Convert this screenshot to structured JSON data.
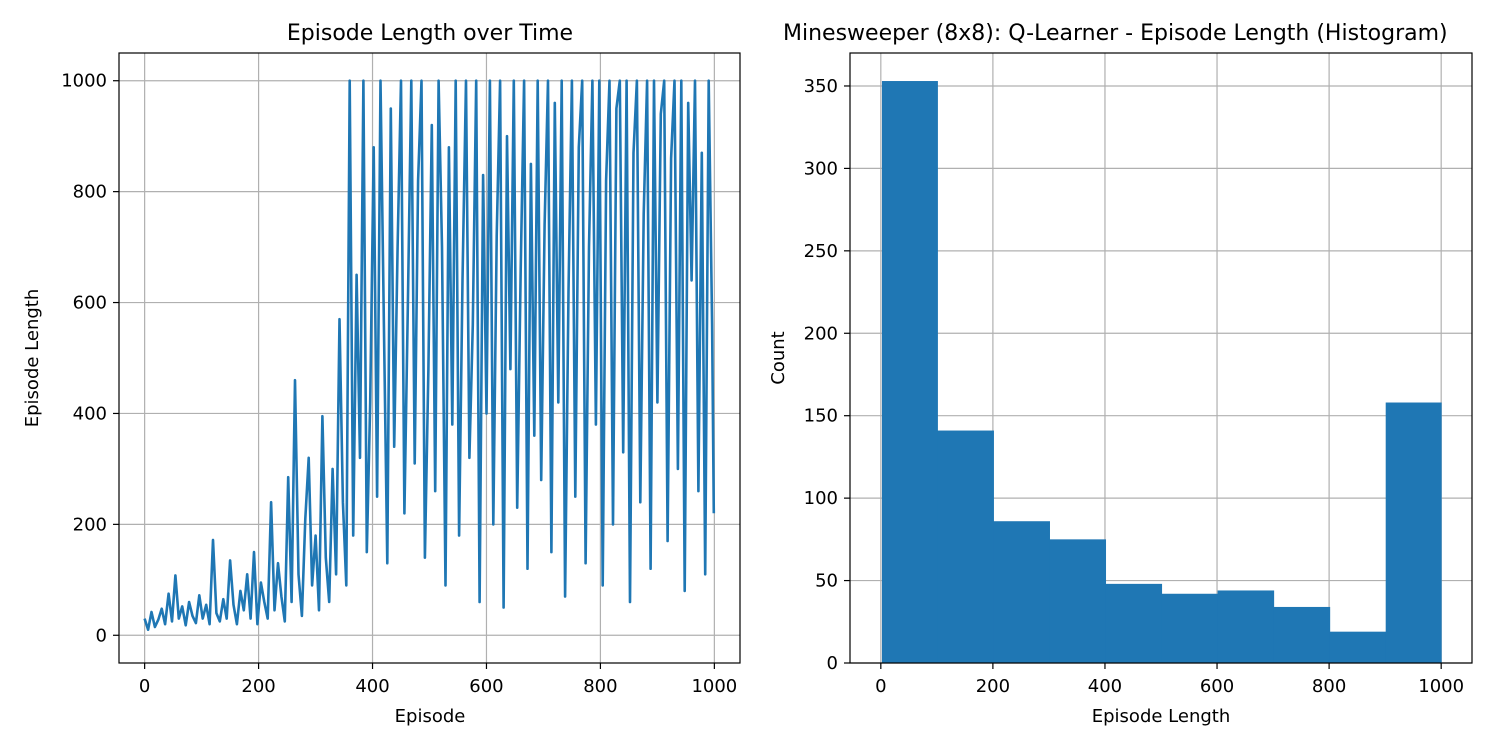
{
  "chart_data": [
    {
      "type": "line",
      "title": "Episode Length over Time",
      "xlabel": "Episode",
      "ylabel": "Episode Length",
      "xlim": [
        -45,
        1045
      ],
      "ylim": [
        -50,
        1050
      ],
      "xticks": [
        "0",
        "200",
        "400",
        "600",
        "800",
        "1000"
      ],
      "yticks": [
        "0",
        "200",
        "400",
        "600",
        "800",
        "1000"
      ],
      "grid": true,
      "color": "#1f77b4",
      "series": [
        {
          "x": [
            0,
            6,
            12,
            18,
            24,
            30,
            36,
            42,
            48,
            54,
            60,
            66,
            72,
            78,
            84,
            90,
            96,
            102,
            108,
            114,
            120,
            126,
            132,
            138,
            144,
            150,
            156,
            162,
            168,
            174,
            180,
            186,
            192,
            198,
            204,
            210,
            216,
            222,
            228,
            234,
            240,
            246,
            252,
            258,
            264,
            270,
            276,
            282,
            288,
            294,
            300,
            306,
            312,
            318,
            324,
            330,
            336,
            342,
            348,
            354,
            360,
            366,
            372,
            378,
            384,
            390,
            396,
            402,
            408,
            414,
            420,
            426,
            432,
            438,
            444,
            450,
            456,
            462,
            468,
            474,
            480,
            486,
            492,
            498,
            504,
            510,
            516,
            522,
            528,
            534,
            540,
            546,
            552,
            558,
            564,
            570,
            576,
            582,
            588,
            594,
            600,
            606,
            612,
            618,
            624,
            630,
            636,
            642,
            648,
            654,
            660,
            666,
            672,
            678,
            684,
            690,
            696,
            702,
            708,
            714,
            720,
            726,
            732,
            738,
            744,
            750,
            756,
            762,
            768,
            774,
            780,
            786,
            792,
            798,
            804,
            810,
            816,
            822,
            828,
            834,
            840,
            846,
            852,
            858,
            864,
            870,
            876,
            882,
            888,
            894,
            900,
            906,
            912,
            918,
            924,
            930,
            936,
            942,
            948,
            954,
            960,
            966,
            972,
            978,
            984,
            990,
            996,
            999
          ],
          "y": [
            30,
            10,
            42,
            15,
            28,
            48,
            20,
            75,
            25,
            108,
            30,
            52,
            18,
            60,
            35,
            22,
            72,
            30,
            55,
            20,
            172,
            40,
            25,
            65,
            30,
            135,
            55,
            20,
            80,
            45,
            110,
            30,
            150,
            20,
            95,
            60,
            30,
            240,
            45,
            130,
            70,
            25,
            285,
            60,
            460,
            110,
            35,
            210,
            320,
            90,
            180,
            45,
            395,
            140,
            60,
            300,
            110,
            570,
            240,
            90,
            1000,
            180,
            650,
            320,
            1000,
            150,
            420,
            880,
            250,
            1000,
            560,
            130,
            950,
            340,
            700,
            1000,
            220,
            600,
            1000,
            310,
            820,
            1000,
            140,
            480,
            920,
            260,
            1000,
            700,
            90,
            880,
            380,
            1000,
            180,
            640,
            1000,
            320,
            560,
            1000,
            60,
            830,
            400,
            1000,
            200,
            720,
            1000,
            50,
            900,
            480,
            1000,
            230,
            660,
            1000,
            120,
            850,
            360,
            1000,
            280,
            740,
            1000,
            150,
            960,
            420,
            1000,
            70,
            620,
            1000,
            250,
            880,
            1000,
            130,
            700,
            1000,
            380,
            1000,
            90,
            820,
            1000,
            200,
            950,
            1000,
            330,
            1000,
            60,
            870,
            1000,
            240,
            760,
            1000,
            120,
            1000,
            420,
            940,
            1000,
            170,
            860,
            1000,
            300,
            1000,
            80,
            960,
            640,
            1000,
            260,
            870,
            110,
            1000,
            560,
            220
          ]
        }
      ]
    },
    {
      "type": "bar",
      "title": "Minesweeper (8x8): Q-Learner - Episode Length (Histogram)",
      "xlabel": "Episode Length",
      "ylabel": "Count",
      "xlim": [
        -55,
        1055
      ],
      "ylim": [
        0,
        370
      ],
      "xticks": [
        "0",
        "200",
        "400",
        "600",
        "800",
        "1000"
      ],
      "yticks": [
        "0",
        "50",
        "100",
        "150",
        "200",
        "250",
        "300",
        "350"
      ],
      "grid": true,
      "color": "#1f77b4",
      "bins": [
        [
          2,
          101
        ],
        [
          101,
          201
        ],
        [
          201,
          301
        ],
        [
          301,
          401
        ],
        [
          401,
          501
        ],
        [
          501,
          601
        ],
        [
          601,
          701
        ],
        [
          701,
          801
        ],
        [
          801,
          901
        ],
        [
          901,
          1000
        ]
      ],
      "values": [
        353,
        141,
        86,
        75,
        48,
        42,
        44,
        34,
        19,
        158
      ]
    }
  ]
}
